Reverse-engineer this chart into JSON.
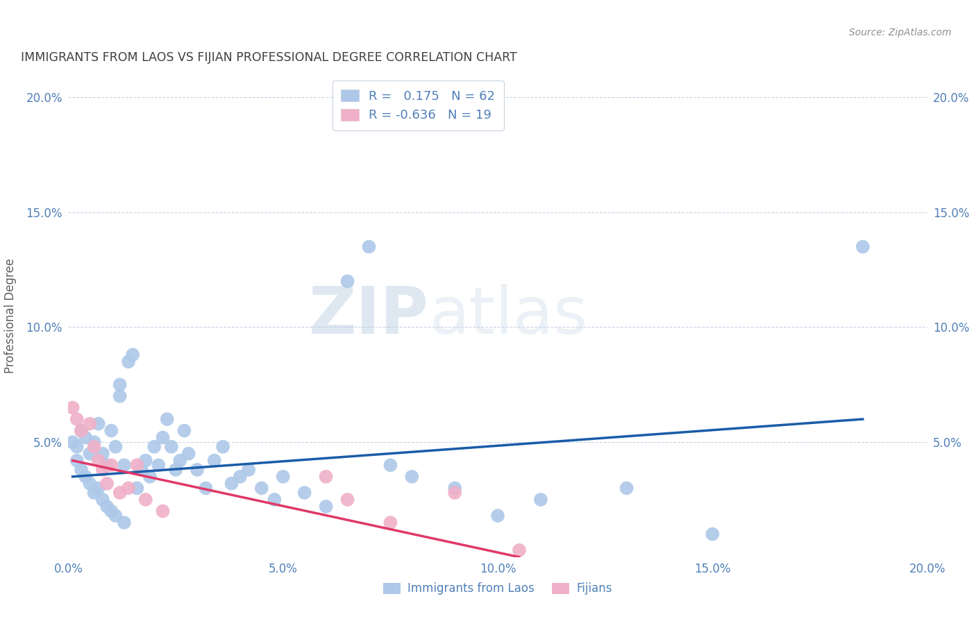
{
  "title": "IMMIGRANTS FROM LAOS VS FIJIAN PROFESSIONAL DEGREE CORRELATION CHART",
  "source": "Source: ZipAtlas.com",
  "ylabel_label": "Professional Degree",
  "xlim": [
    0.0,
    0.2
  ],
  "ylim": [
    0.0,
    0.21
  ],
  "x_ticks": [
    0.0,
    0.05,
    0.1,
    0.15,
    0.2
  ],
  "y_ticks": [
    0.0,
    0.05,
    0.1,
    0.15,
    0.2
  ],
  "x_tick_labels": [
    "0.0%",
    "5.0%",
    "10.0%",
    "15.0%",
    "20.0%"
  ],
  "y_tick_labels": [
    "",
    "5.0%",
    "10.0%",
    "15.0%",
    "20.0%"
  ],
  "series1_color": "#adc8e8",
  "series1_line_color": "#1a5ca8",
  "series1_label": "Immigrants from Laos",
  "series1_R": "0.175",
  "series1_N": "62",
  "series2_color": "#f0b0c8",
  "series2_line_color": "#e03868",
  "series2_label": "Fijians",
  "series2_R": "-0.636",
  "series2_N": "19",
  "background_color": "#ffffff",
  "grid_color": "#c8d4e8",
  "title_color": "#404040",
  "axis_color": "#5080b8",
  "watermark_zip": "ZIP",
  "watermark_atlas": "atlas",
  "series1_x": [
    0.001,
    0.002,
    0.002,
    0.003,
    0.003,
    0.004,
    0.004,
    0.005,
    0.005,
    0.006,
    0.006,
    0.007,
    0.007,
    0.008,
    0.008,
    0.009,
    0.009,
    0.01,
    0.01,
    0.011,
    0.011,
    0.012,
    0.012,
    0.013,
    0.013,
    0.014,
    0.015,
    0.016,
    0.017,
    0.018,
    0.019,
    0.02,
    0.021,
    0.022,
    0.023,
    0.024,
    0.025,
    0.026,
    0.027,
    0.028,
    0.03,
    0.032,
    0.034,
    0.036,
    0.038,
    0.04,
    0.042,
    0.045,
    0.048,
    0.05,
    0.055,
    0.06,
    0.065,
    0.07,
    0.075,
    0.08,
    0.09,
    0.1,
    0.11,
    0.13,
    0.15,
    0.185
  ],
  "series1_y": [
    0.05,
    0.048,
    0.042,
    0.055,
    0.038,
    0.052,
    0.035,
    0.045,
    0.032,
    0.05,
    0.028,
    0.058,
    0.03,
    0.045,
    0.025,
    0.04,
    0.022,
    0.055,
    0.02,
    0.048,
    0.018,
    0.075,
    0.07,
    0.04,
    0.015,
    0.085,
    0.088,
    0.03,
    0.038,
    0.042,
    0.035,
    0.048,
    0.04,
    0.052,
    0.06,
    0.048,
    0.038,
    0.042,
    0.055,
    0.045,
    0.038,
    0.03,
    0.042,
    0.048,
    0.032,
    0.035,
    0.038,
    0.03,
    0.025,
    0.035,
    0.028,
    0.022,
    0.12,
    0.135,
    0.04,
    0.035,
    0.03,
    0.018,
    0.025,
    0.03,
    0.01,
    0.135
  ],
  "series2_x": [
    0.001,
    0.002,
    0.003,
    0.005,
    0.006,
    0.007,
    0.008,
    0.009,
    0.01,
    0.012,
    0.014,
    0.016,
    0.018,
    0.022,
    0.06,
    0.065,
    0.075,
    0.09,
    0.105
  ],
  "series2_y": [
    0.065,
    0.06,
    0.055,
    0.058,
    0.048,
    0.042,
    0.038,
    0.032,
    0.04,
    0.028,
    0.03,
    0.04,
    0.025,
    0.02,
    0.035,
    0.025,
    0.015,
    0.028,
    0.003
  ],
  "line1_x_start": 0.001,
  "line1_x_end": 0.185,
  "line1_y_start": 0.035,
  "line1_y_end": 0.06,
  "line2_x_start": 0.001,
  "line2_x_end": 0.105,
  "line2_y_start": 0.042,
  "line2_y_end": 0.0
}
